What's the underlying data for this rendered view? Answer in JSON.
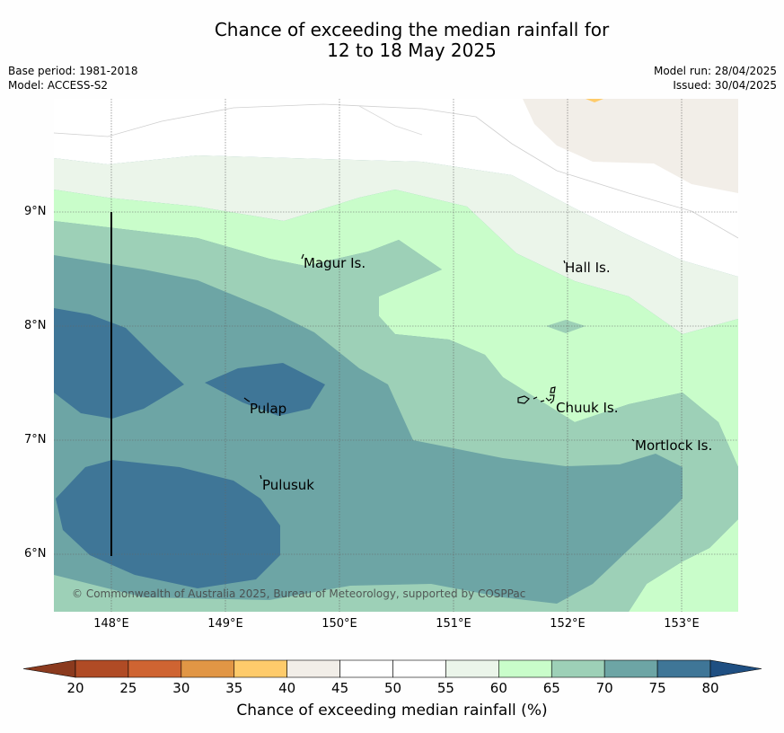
{
  "title": {
    "line1": "Chance of exceeding the median rainfall for",
    "line2": "12 to 18 May 2025"
  },
  "meta": {
    "base_period": "Base period: 1981-2018",
    "model": "Model: ACCESS-S2",
    "model_run": "Model run: 28/04/2025",
    "issued": "Issued: 30/04/2025"
  },
  "axes": {
    "lat_labels": [
      "9°N",
      "8°N",
      "7°N",
      "6°N"
    ],
    "lon_labels": [
      "148°E",
      "149°E",
      "150°E",
      "151°E",
      "152°E",
      "153°E"
    ]
  },
  "places": {
    "magur": "Magur Is.",
    "hall": "Hall Is.",
    "pulap": "Pulap",
    "chuuk": "Chuuk Is.",
    "mortlock": "Mortlock Is.",
    "pulusuk": "Pulusuk"
  },
  "copyright": "© Commonwealth of Australia 2025, Bureau of Meteorology, supported by COSPPac",
  "legend": {
    "label": "Chance of exceeding median rainfall (%)",
    "ticks": [
      "20",
      "25",
      "30",
      "35",
      "40",
      "45",
      "50",
      "55",
      "60",
      "65",
      "70",
      "75",
      "80"
    ],
    "under_color": "#8b3a1e",
    "over_color": "#1f4f82",
    "colors": [
      "#b04b25",
      "#cf6432",
      "#e19645",
      "#fecb6b",
      "#f2eee8",
      "#ffffff",
      "#ffffff",
      "#ebf5ea",
      "#c9fdca",
      "#9dd0b7",
      "#6da5a5",
      "#3f7697"
    ]
  }
}
